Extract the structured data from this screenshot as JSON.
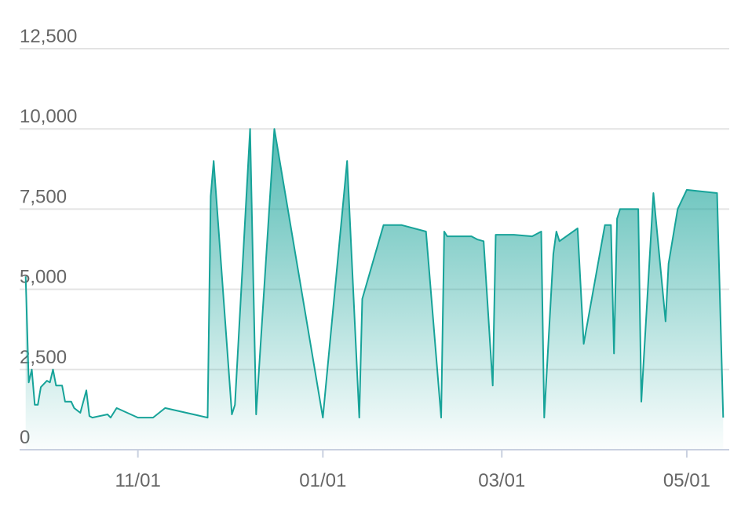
{
  "chart_data": {
    "type": "area",
    "x": [
      "09/25",
      "09/26",
      "09/27",
      "09/28",
      "09/29",
      "09/30",
      "10/02",
      "10/03",
      "10/04",
      "10/05",
      "10/07",
      "10/08",
      "10/10",
      "10/11",
      "10/13",
      "10/15",
      "10/16",
      "10/17",
      "10/22",
      "10/23",
      "10/25",
      "11/01",
      "11/06",
      "11/10",
      "11/24",
      "11/25",
      "11/26",
      "12/02",
      "12/03",
      "12/08",
      "12/10",
      "12/16",
      "01/01",
      "01/09",
      "01/13",
      "01/14",
      "01/21",
      "01/27",
      "02/04",
      "02/09",
      "02/10",
      "02/11",
      "02/19",
      "02/21",
      "02/23",
      "02/26",
      "02/27",
      "03/05",
      "03/11",
      "03/14",
      "03/15",
      "03/18",
      "03/19",
      "03/20",
      "03/26",
      "03/28",
      "04/04",
      "04/06",
      "04/07",
      "04/08",
      "04/09",
      "04/15",
      "04/16",
      "04/20",
      "04/24",
      "04/25",
      "04/28",
      "05/01",
      "05/11",
      "05/13"
    ],
    "series": [
      {
        "color": "#17a399",
        "values": [
          5400,
          2100,
          2500,
          1400,
          1400,
          1950,
          2150,
          2100,
          2500,
          2000,
          2000,
          1500,
          1500,
          1300,
          1150,
          1850,
          1050,
          1000,
          1100,
          1000,
          1300,
          1000,
          1000,
          1300,
          1000,
          7900,
          9000,
          1100,
          1400,
          10000,
          1100,
          10000,
          1000,
          9000,
          1000,
          4700,
          7000,
          7000,
          6800,
          1000,
          6800,
          6650,
          6650,
          6550,
          6500,
          2000,
          6700,
          6700,
          6650,
          6800,
          1000,
          6100,
          6800,
          6500,
          6900,
          3300,
          7000,
          7000,
          3000,
          7200,
          7500,
          7500,
          1500,
          8000,
          4000,
          5800,
          7500,
          8100,
          8000,
          1000
        ]
      }
    ],
    "xlim": [
      "09/23",
      "05/15"
    ],
    "xticks": [
      "11/01",
      "01/01",
      "03/01",
      "05/01"
    ],
    "ylim": [
      0,
      12500
    ],
    "yticks": [
      0,
      {
        "value": 2500,
        "label": "2,500"
      },
      {
        "value": 5000,
        "label": "5,000"
      },
      {
        "value": 7500,
        "label": "7,500"
      },
      {
        "value": 10000,
        "label": "10,000"
      },
      {
        "value": 12500,
        "label": "12,500"
      }
    ],
    "grid": true
  }
}
